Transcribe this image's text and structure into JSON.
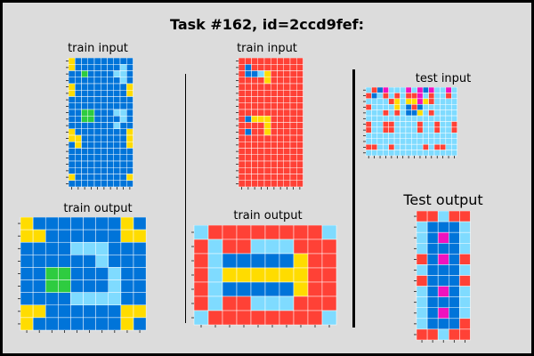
{
  "title": "Task #162, id=2ccd9fef:",
  "labels": {
    "train_input_1": "train input",
    "train_output_1": "train output",
    "train_input_2": "train input",
    "train_output_2": "train output",
    "test_input": "test input",
    "test_output": "Test output"
  },
  "colors": {
    "0": "#000000",
    "1": "#0074D9",
    "2": "#FF4136",
    "3": "#2ECC40",
    "4": "#FFDC00",
    "5": "#AAAAAA",
    "6": "#F012BE",
    "7": "#FF851B",
    "8": "#7FDBFF",
    "9": "#870C25",
    "background": "#dcdcdc",
    "gridline": "#ffffff"
  },
  "grids": {
    "train_input_1": [
      "4111111111",
      "4111111181",
      "1131111881",
      "1111111181",
      "4111111114",
      "4111111114",
      "1111111111",
      "1111111111",
      "1133111881",
      "1133111181",
      "1111111811",
      "4111111114",
      "4411111114",
      "1411111114",
      "1111111111",
      "1111111111",
      "1111111111",
      "1111111111",
      "4111111114",
      "1111111111"
    ],
    "train_output_1": [
      "4111111141",
      "4411111144",
      "1111888111",
      "1111118111",
      "1133111811",
      "1133111811",
      "1111888811",
      "4411111144",
      "4111111141"
    ],
    "train_input_2": [
      "2222222222",
      "2122222222",
      "2118422222",
      "2222422222",
      "2222222222",
      "2222222222",
      "2222222222",
      "2222222222",
      "2222222222",
      "2144422222",
      "2222422222",
      "2122422222",
      "2222222222",
      "2222222222",
      "2222222222",
      "2222222222",
      "2222222222",
      "2222222222",
      "2222222222",
      "2222222222"
    ],
    "train_output_2": [
      "8222222228",
      "2822888222",
      "2811111422",
      "2844444422",
      "2811111422",
      "2822888222",
      "8222222228"
    ],
    "test_input": [
      "8216888686168868",
      "2182828226828828",
      "8888248446428888",
      "2888848121888888",
      "8882828114828888",
      "8888888888888888",
      "2882288882882882",
      "2882288882882882",
      "8888888888888888",
      "8888888888888888",
      "2288288888282288",
      "8888888888888888"
    ],
    "test_output": [
      "22822",
      "81118",
      "81618",
      "81118",
      "21612",
      "81118",
      "21112",
      "81618",
      "81118",
      "81618",
      "81112",
      "22822"
    ]
  }
}
